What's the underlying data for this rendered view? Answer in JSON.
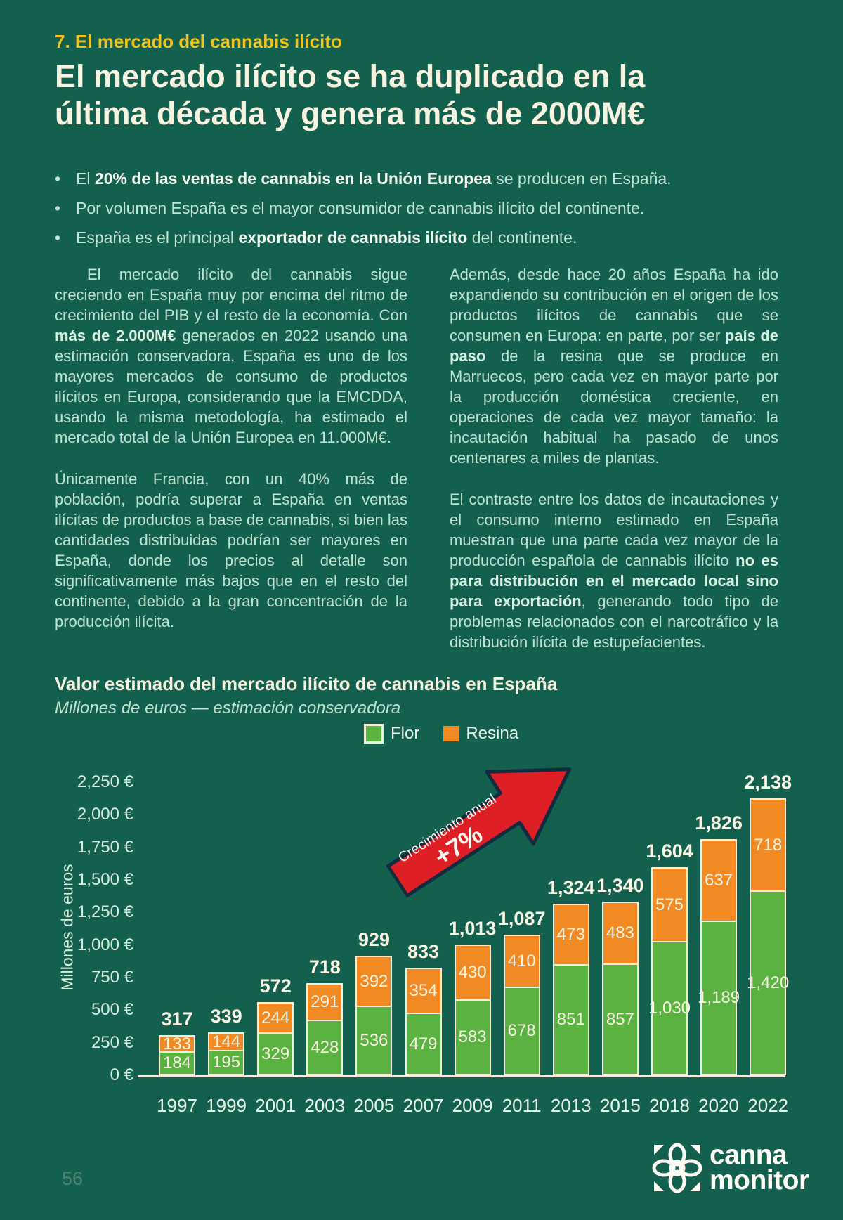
{
  "page": {
    "number": "56"
  },
  "header": {
    "section": "7. El mercado del cannabis ilícito",
    "title_line1": "El mercado ilícito se ha duplicado en la",
    "title_line2": "última década y genera más de 2000M€"
  },
  "bullets": [
    {
      "segments": [
        {
          "t": "El ",
          "b": false
        },
        {
          "t": "20% de las ventas de cannabis en la Unión Europea",
          "b": true
        },
        {
          "t": " se producen en España.",
          "b": false
        }
      ]
    },
    {
      "segments": [
        {
          "t": "Por volumen España es el mayor consumidor de cannabis ilícito del continente.",
          "b": false
        }
      ]
    },
    {
      "segments": [
        {
          "t": "España es el principal ",
          "b": false
        },
        {
          "t": "exportador de cannabis ilícito",
          "b": true
        },
        {
          "t": " del continente.",
          "b": false
        }
      ]
    }
  ],
  "columns": {
    "left": [
      {
        "indent": true,
        "segments": [
          {
            "t": "El mercado ilícito del cannabis sigue creciendo en España muy por encima del ritmo de crecimiento del PIB y el resto de la economía. Con ",
            "b": false
          },
          {
            "t": "más de 2.000M€",
            "b": true
          },
          {
            "t": " generados en 2022 usando una estimación conservadora, España es uno de los mayores mercados de consumo de productos ilícitos en Europa, considerando que la EMCDDA, usando la misma metodología, ha estimado el mercado total de la Unión Europea en 11.000M€.",
            "b": false
          }
        ]
      },
      {
        "indent": false,
        "segments": [
          {
            "t": "Únicamente Francia, con un 40% más de población, podría superar a España en ventas ilícitas de productos a base de cannabis, si bien las cantidades distribuidas podrían ser mayores en España, donde los precios al detalle son significativamente más bajos que en el resto del continente, debido a la gran concentración de la producción ilícita.",
            "b": false
          }
        ]
      }
    ],
    "right": [
      {
        "indent": false,
        "segments": [
          {
            "t": "Además, desde hace 20 años España ha ido expandiendo su contribución en el origen de los productos ilícitos de cannabis que se consumen en Europa: en parte, por ser ",
            "b": false
          },
          {
            "t": "país de paso",
            "b": true
          },
          {
            "t": " de la resina que se produce en Marruecos, pero cada vez en mayor parte por la producción doméstica creciente, en operaciones de cada vez mayor tamaño: la incautación habitual ha pasado de unos centenares a miles de plantas.",
            "b": false
          }
        ]
      },
      {
        "indent": false,
        "segments": [
          {
            "t": "El contraste entre los datos de incautaciones y el consumo interno estimado en España muestran que una parte cada vez mayor de la producción española de cannabis ilícito ",
            "b": false
          },
          {
            "t": "no es para distribución en el mercado local sino para exportación",
            "b": true
          },
          {
            "t": ", generando todo tipo de problemas relacionados con el narcotráfico y la distribución ilícita de estupefacientes.",
            "b": false
          }
        ]
      }
    ]
  },
  "chart": {
    "heading": "Valor estimado del mercado ilícito de cannabis en España",
    "subtitle": "Millones de euros — estimación conservadora",
    "legend": [
      {
        "label": "Flor",
        "color": "#5AB241",
        "border": true
      },
      {
        "label": "Resina",
        "color": "#F18A23",
        "border": false
      }
    ],
    "arrow": {
      "line1": "Crecimiento anual",
      "line2": "+7%",
      "color": "#DE1F26",
      "outline": "#122B3E"
    }
  },
  "chart_data": {
    "type": "bar",
    "stacked": true,
    "title": "Valor estimado del mercado ilícito de cannabis en España",
    "subtitle": "Millones de euros — estimación conservadora",
    "ylabel": "Millones de euros",
    "xlabel": "",
    "ylim": [
      0,
      2250
    ],
    "ytick_step": 250,
    "ytick_labels": [
      "0 €",
      "250 €",
      "500 €",
      "750 €",
      "1,000 €",
      "1,250 €",
      "1,500 €",
      "1,750 €",
      "2,000 €",
      "2,250 €"
    ],
    "categories": [
      "1997",
      "1999",
      "2001",
      "2003",
      "2005",
      "2007",
      "2009",
      "2011",
      "2013",
      "2015",
      "2018",
      "2020",
      "2022"
    ],
    "series": [
      {
        "name": "Flor",
        "color": "#5AB241",
        "values": [
          184,
          195,
          329,
          428,
          536,
          479,
          583,
          678,
          851,
          857,
          1030,
          1189,
          1420
        ]
      },
      {
        "name": "Resina",
        "color": "#F18A23",
        "values": [
          133,
          144,
          244,
          291,
          392,
          354,
          430,
          410,
          473,
          483,
          575,
          637,
          718
        ]
      }
    ],
    "totals": [
      317,
      339,
      572,
      718,
      929,
      833,
      1013,
      1087,
      1324,
      1340,
      1604,
      1826,
      2138
    ],
    "annotation": "Crecimiento anual +7%",
    "legend_position": "top",
    "grid": false
  },
  "logo": {
    "line1": "canna",
    "line2": "monitor"
  },
  "colors": {
    "background": "#14604E",
    "accent_yellow": "#F2C31B",
    "cream": "#F8F3E1",
    "mint_text": "#BFE2D2",
    "bar_green": "#5AB241",
    "bar_orange": "#F18A23",
    "bar_border": "#F3EEDC",
    "arrow_red": "#DE1F26"
  }
}
